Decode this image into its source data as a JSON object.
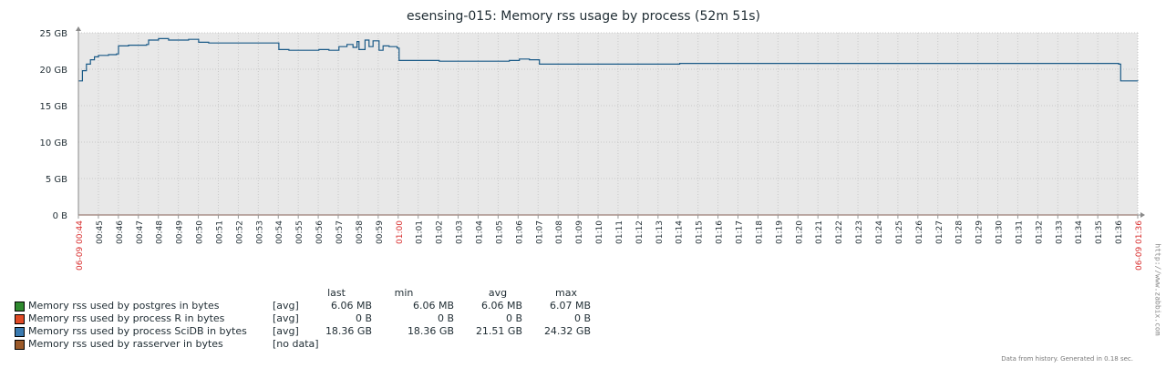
{
  "chart_data": {
    "type": "line",
    "title": "esensing-015: Memory rss usage by process (52m 51s)",
    "ylim": [
      0,
      25
    ],
    "y_ticks": [
      "0 B",
      "5 GB",
      "10 GB",
      "15 GB",
      "20 GB",
      "25 GB"
    ],
    "x_ticks": [
      "06-09 00:44",
      "00:45",
      "00:46",
      "00:47",
      "00:48",
      "00:49",
      "00:50",
      "00:51",
      "00:52",
      "00:53",
      "00:54",
      "00:55",
      "00:56",
      "00:57",
      "00:58",
      "00:59",
      "01:00",
      "01:01",
      "01:02",
      "01:03",
      "01:04",
      "01:05",
      "01:06",
      "01:07",
      "01:08",
      "01:09",
      "01:10",
      "01:11",
      "01:12",
      "01:13",
      "01:14",
      "01:15",
      "01:16",
      "01:17",
      "01:18",
      "01:19",
      "01:20",
      "01:21",
      "01:22",
      "01:23",
      "01:24",
      "01:25",
      "01:26",
      "01:27",
      "01:28",
      "01:29",
      "01:30",
      "01:31",
      "01:32",
      "01:33",
      "01:34",
      "01:35",
      "01:36",
      "06-09 01:36"
    ],
    "x_ticks_red": [
      "06-09 00:44",
      "01:00",
      "06-09 01:36"
    ],
    "grid": true,
    "series": [
      {
        "name": "Memory rss used by process SciDB in bytes",
        "color": "#1a5a87",
        "x_minutes": [
          0,
          0.2,
          0.4,
          0.6,
          0.8,
          1.0,
          1.5,
          1.9,
          2.0,
          2.5,
          3.0,
          3.4,
          3.5,
          4.0,
          4.5,
          5.0,
          5.5,
          6.0,
          6.5,
          7.0,
          7.5,
          8.0,
          8.5,
          9.0,
          9.5,
          10.0,
          10.5,
          11.0,
          11.5,
          12.0,
          12.5,
          13.0,
          13.4,
          13.7,
          13.9,
          14.0,
          14.3,
          14.5,
          14.7,
          15.0,
          15.2,
          15.5,
          15.9,
          16.0,
          17.0,
          18.0,
          19.0,
          20.0,
          21.0,
          21.5,
          22.0,
          22.5,
          23.0,
          24.0,
          26.0,
          28.0,
          30.0,
          32.0,
          34.0,
          36.0,
          38.0,
          40.0,
          42.0,
          44.0,
          46.0,
          48.0,
          49.0,
          50.0,
          51.5,
          51.9,
          52.0,
          52.85
        ],
        "values_gb": [
          18.4,
          19.8,
          20.7,
          21.3,
          21.7,
          21.9,
          22.0,
          22.1,
          23.2,
          23.3,
          23.3,
          23.4,
          24.0,
          24.2,
          24.0,
          24.0,
          24.1,
          23.7,
          23.6,
          23.6,
          23.6,
          23.6,
          23.6,
          23.6,
          23.6,
          22.7,
          22.6,
          22.6,
          22.6,
          22.7,
          22.6,
          23.1,
          23.4,
          23.0,
          23.8,
          22.7,
          24.0,
          23.1,
          23.9,
          22.6,
          23.2,
          23.1,
          22.9,
          21.2,
          21.2,
          21.1,
          21.1,
          21.1,
          21.1,
          21.2,
          21.4,
          21.3,
          20.7,
          20.7,
          20.7,
          20.7,
          20.8,
          20.8,
          20.8,
          20.8,
          20.8,
          20.8,
          20.8,
          20.8,
          20.8,
          20.8,
          20.8,
          20.8,
          20.8,
          20.7,
          18.4,
          18.36
        ]
      },
      {
        "name": "Memory rss used by process R in bytes",
        "color": "#e04a25",
        "x_minutes": [
          0,
          52.85
        ],
        "values_gb": [
          0,
          0
        ]
      }
    ]
  },
  "legend": {
    "headers": [
      "last",
      "min",
      "avg",
      "max"
    ],
    "rows": [
      {
        "name": "Memory rss used by postgres in bytes",
        "fn": "[avg]",
        "color": "#2f8a2f",
        "last": "6.06 MB",
        "min": "6.06 MB",
        "avg": "6.06 MB",
        "max": "6.07 MB"
      },
      {
        "name": "Memory rss used by process R in bytes",
        "fn": "[avg]",
        "color": "#e04a25",
        "last": "0 B",
        "min": "0 B",
        "avg": "0 B",
        "max": "0 B"
      },
      {
        "name": "Memory rss used by process SciDB in bytes",
        "fn": "[avg]",
        "color": "#3a7ab0",
        "last": "18.36 GB",
        "min": "18.36 GB",
        "avg": "21.51 GB",
        "max": "24.32 GB"
      },
      {
        "name": "Memory rss used by rasserver in bytes",
        "fn": "[no data]",
        "color": "#9b5a2a",
        "last": "",
        "min": "",
        "avg": "",
        "max": ""
      }
    ]
  },
  "footer": "Data from history. Generated in 0.18 sec.",
  "watermark": "http://www.zabbix.com"
}
